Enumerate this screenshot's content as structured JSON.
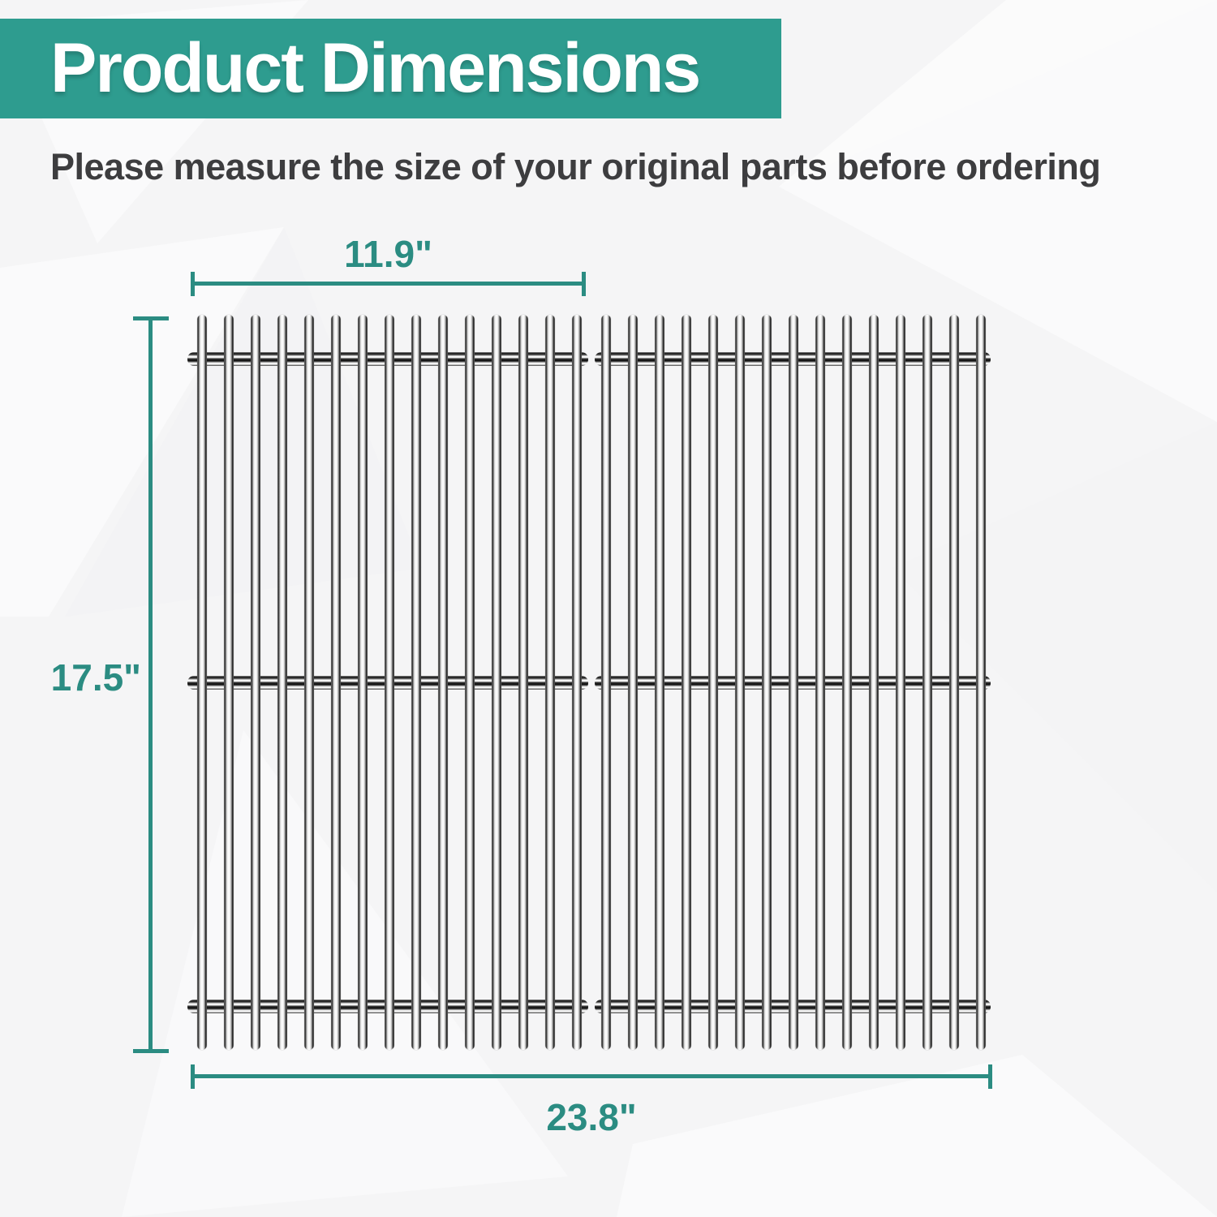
{
  "header": {
    "title": "Product Dimensions"
  },
  "subtitle": "Please measure the size of your original parts before ordering",
  "diagram": {
    "dimensions": {
      "grate_width_label": "11.9\"",
      "height_label": "17.5\"",
      "total_width_label": "23.8\""
    },
    "grates": {
      "count": 2,
      "bars_per_grate": 15,
      "crossrods_per_grate": 3
    }
  },
  "colors": {
    "banner_teal": "#2e9c8f",
    "dimension_teal": "#2b8c82",
    "subtitle_gray": "#3d3d3f",
    "background": "#f5f5f6"
  }
}
